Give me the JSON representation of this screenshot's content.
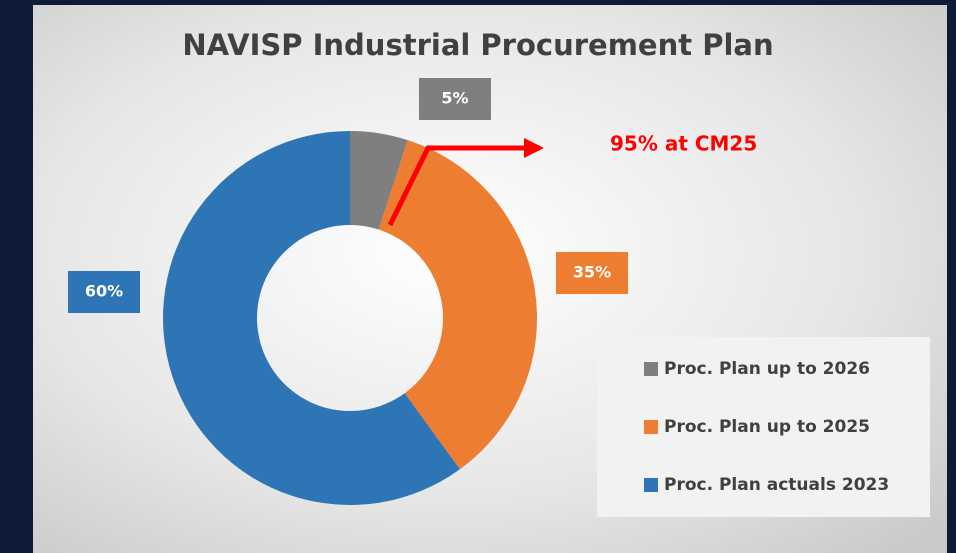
{
  "chart_data": {
    "type": "pie",
    "title": "NAVISP Industrial Procurement Plan",
    "categories": [
      "Proc. Plan up to 2026",
      "Proc. Plan up to 2025",
      "Proc. Plan actuals 2023"
    ],
    "values": [
      5,
      35,
      60
    ],
    "value_labels": [
      "5%",
      "35%",
      "60%"
    ],
    "colors": [
      "#7f7f7f",
      "#ed7d31",
      "#2e75b6"
    ],
    "annotation": "95% at CM25",
    "legend": "bottom-right"
  }
}
